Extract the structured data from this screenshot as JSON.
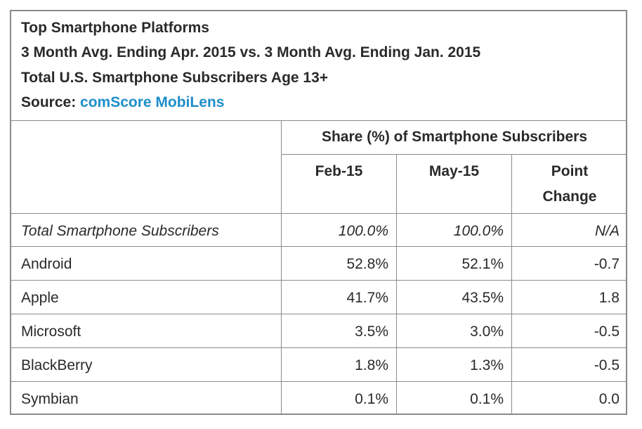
{
  "header": {
    "title": "Top Smartphone Platforms",
    "subtitle": "3 Month Avg. Ending Apr. 2015 vs. 3 Month Avg. Ending Jan. 2015",
    "population": "Total U.S. Smartphone Subscribers Age 13+",
    "source_label": "Source:",
    "source_link": "comScore MobiLens"
  },
  "table": {
    "group_header": "Share (%) of Smartphone Subscribers",
    "columns": [
      "Feb-15",
      "May-15",
      "Point",
      "Change"
    ],
    "rows": [
      {
        "platform": "Total Smartphone Subscribers",
        "feb": "100.0%",
        "may": "100.0%",
        "change": "N/A"
      },
      {
        "platform": "Android",
        "feb": "52.8%",
        "may": "52.1%",
        "change": "-0.7"
      },
      {
        "platform": "Apple",
        "feb": "41.7%",
        "may": "43.5%",
        "change": "1.8"
      },
      {
        "platform": "Microsoft",
        "feb": "3.5%",
        "may": "3.0%",
        "change": "-0.5"
      },
      {
        "platform": "BlackBerry",
        "feb": "1.8%",
        "may": "1.3%",
        "change": "-0.5"
      },
      {
        "platform": "Symbian",
        "feb": "0.1%",
        "may": "0.1%",
        "change": "0.0"
      }
    ]
  },
  "colors": {
    "link": "#1e8ec9",
    "border": "#8a8a8a",
    "text": "#2a2a2a"
  }
}
